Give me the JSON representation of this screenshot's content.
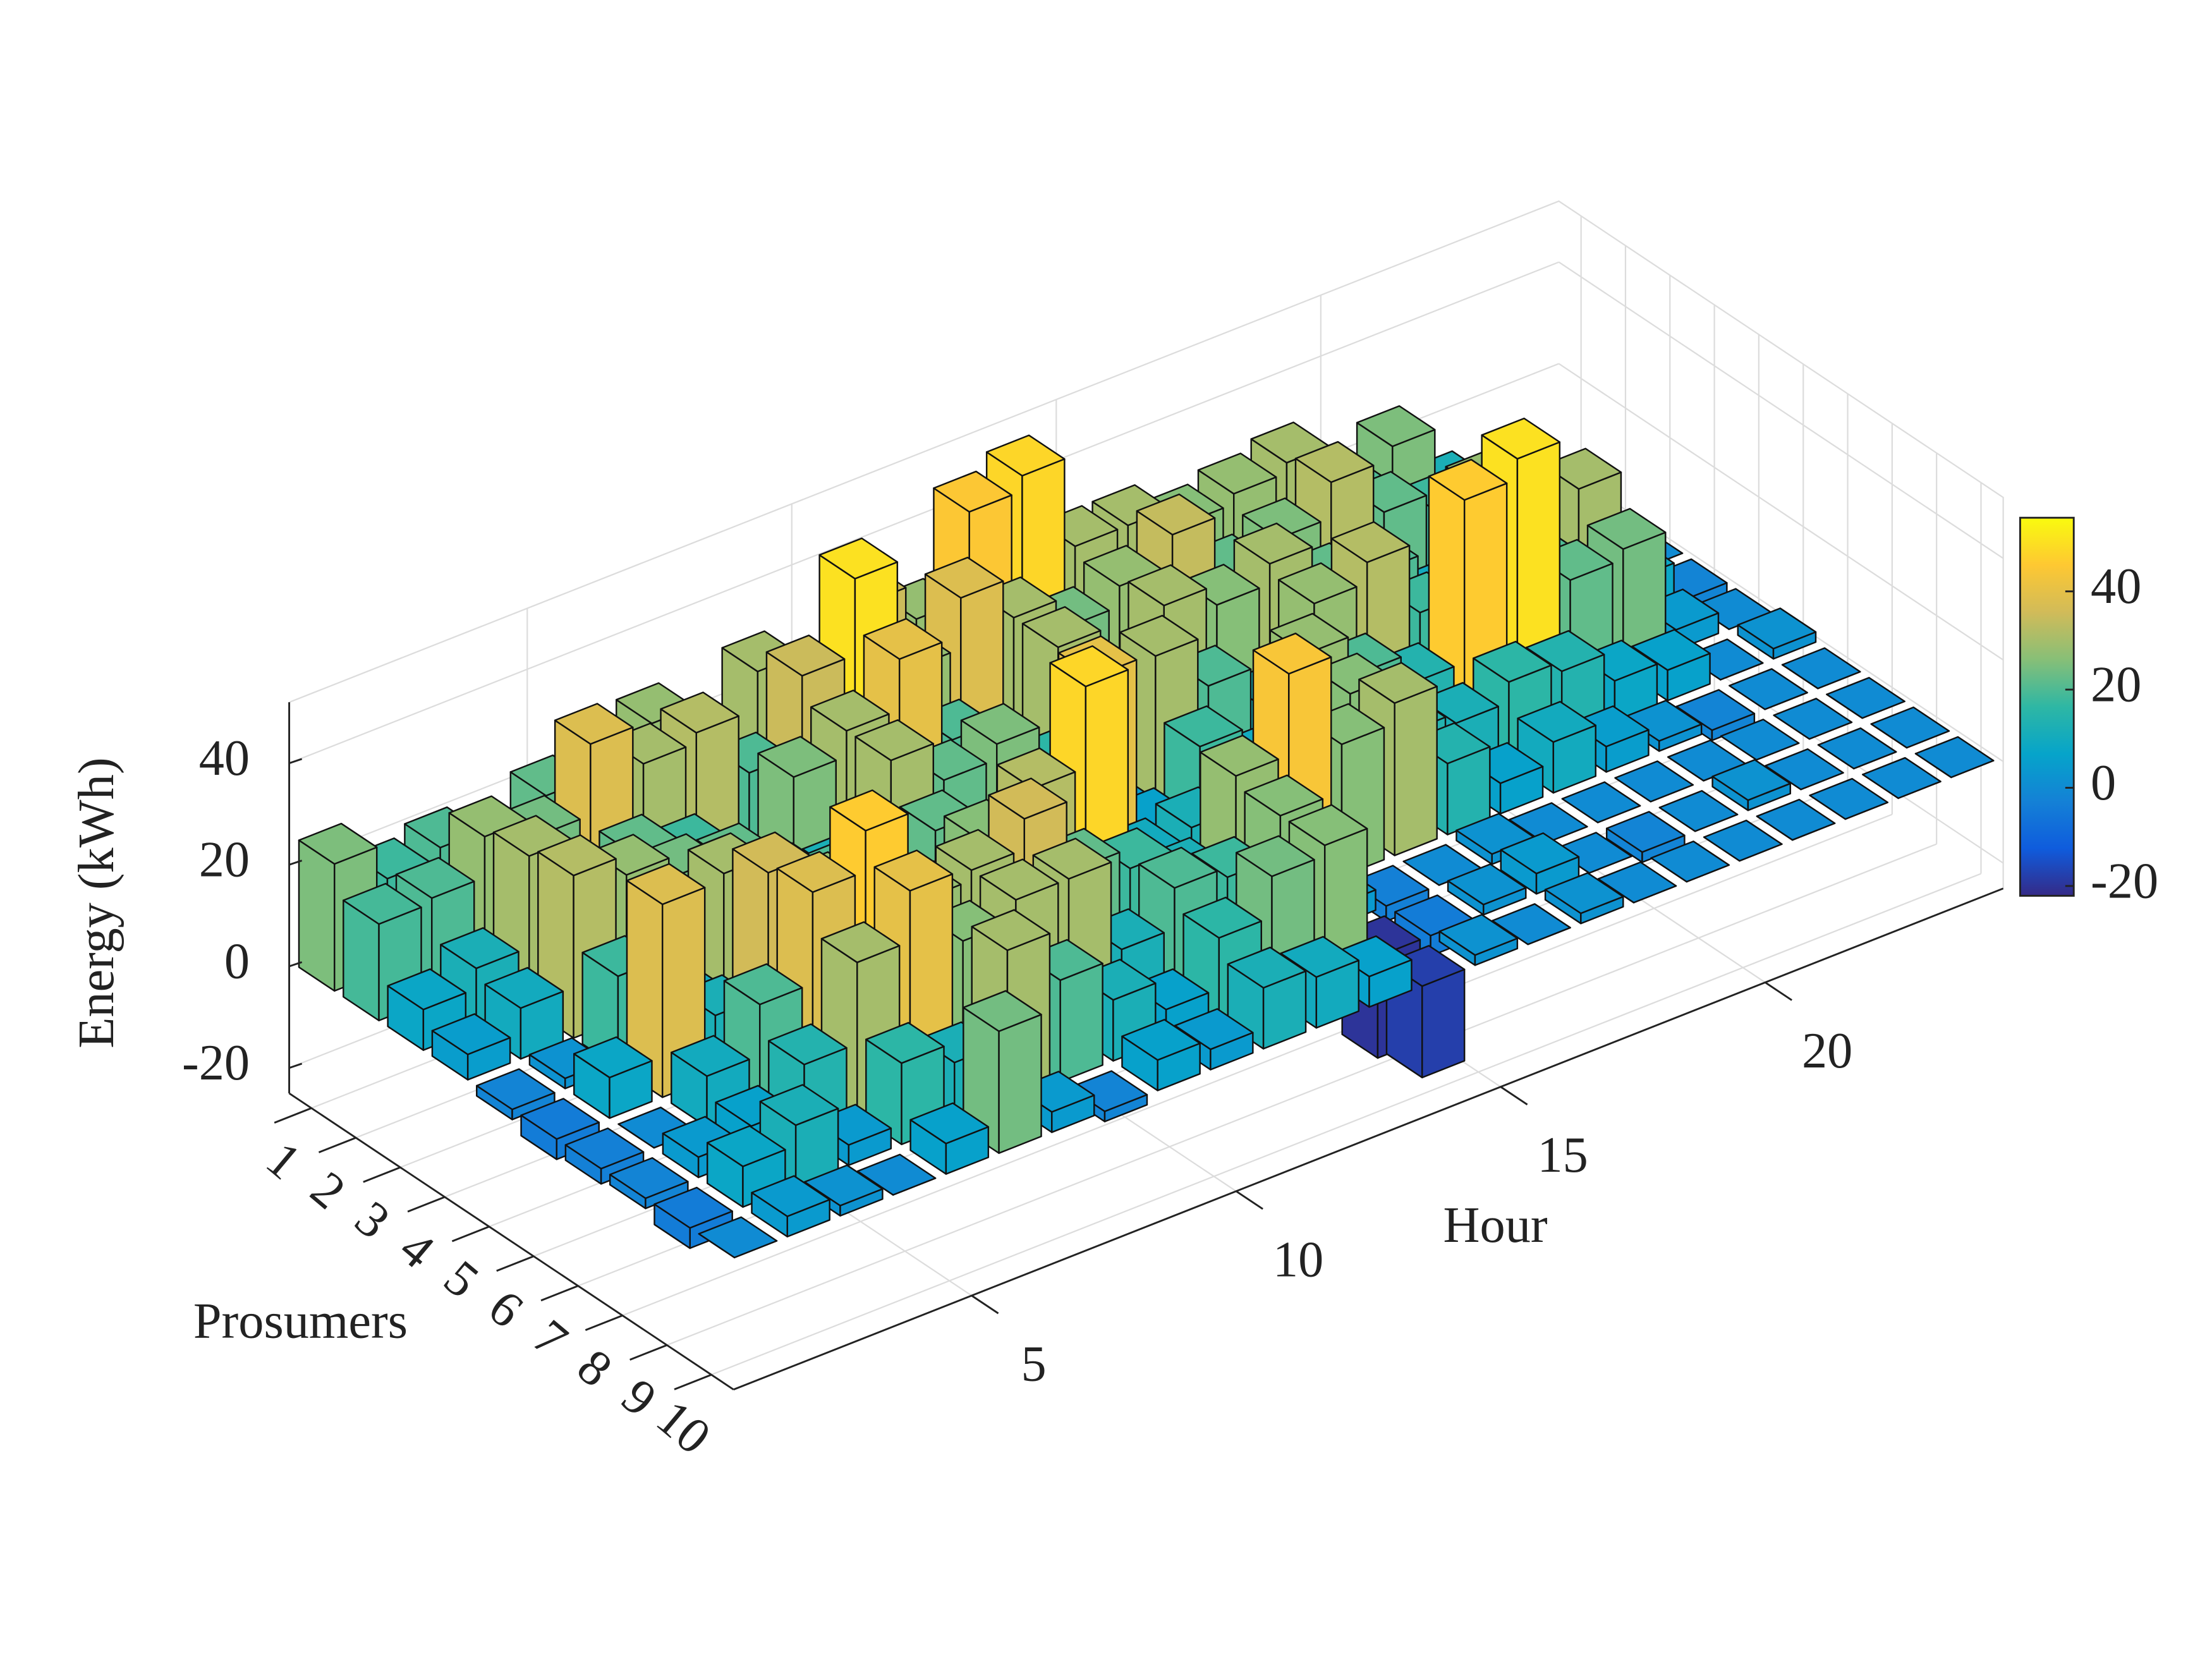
{
  "chart_data": {
    "type": "bar3",
    "xlabel": "Hour",
    "ylabel": "Prosumers",
    "zlabel": "Energy (kWh)",
    "x": [
      1,
      2,
      3,
      4,
      5,
      6,
      7,
      8,
      9,
      10,
      11,
      12,
      13,
      14,
      15,
      16,
      17,
      18,
      19,
      20,
      21,
      22,
      23,
      24
    ],
    "y": [
      1,
      2,
      3,
      4,
      5,
      6,
      7,
      8,
      9,
      10
    ],
    "xlim": [
      0.5,
      24.5
    ],
    "xticks": [
      5,
      10,
      15,
      20
    ],
    "ylim": [
      0.5,
      10.5
    ],
    "yticks": [
      1,
      2,
      3,
      4,
      5,
      6,
      7,
      8,
      9,
      10
    ],
    "zlim": [
      -25,
      52
    ],
    "zticks": [
      -20,
      0,
      20,
      40
    ],
    "grid": true,
    "values": [
      [
        25,
        18,
        20,
        14,
        22,
        -3,
        28,
        5,
        30,
        12,
        35,
        28,
        45,
        48,
        30,
        30,
        26,
        28,
        30,
        20,
        25,
        12,
        0,
        -2
      ],
      [
        19,
        20,
        28,
        24,
        38,
        30,
        32,
        20,
        35,
        50,
        28,
        38,
        30,
        24,
        28,
        34,
        22,
        25,
        32,
        22,
        18,
        10,
        5,
        -2
      ],
      [
        8,
        12,
        30,
        15,
        22,
        18,
        8,
        25,
        30,
        40,
        20,
        10,
        30,
        14,
        30,
        26,
        30,
        22,
        20,
        10,
        28,
        18,
        2,
        0
      ],
      [
        5,
        10,
        32,
        28,
        24,
        22,
        14,
        12,
        30,
        22,
        25,
        16,
        4,
        30,
        20,
        12,
        28,
        32,
        18,
        25,
        20,
        30,
        8,
        -2
      ],
      [
        -2,
        2,
        18,
        10,
        30,
        14,
        20,
        8,
        22,
        14,
        18,
        40,
        6,
        18,
        10,
        28,
        20,
        14,
        46,
        50,
        22,
        24,
        4,
        0
      ],
      [
        -4,
        8,
        38,
        12,
        36,
        28,
        12,
        18,
        26,
        32,
        48,
        10,
        12,
        -18,
        6,
        26,
        14,
        12,
        16,
        14,
        8,
        6,
        0,
        2
      ],
      [
        -3,
        0,
        10,
        20,
        38,
        46,
        28,
        30,
        36,
        22,
        18,
        12,
        28,
        44,
        26,
        30,
        14,
        6,
        10,
        5,
        2,
        -2,
        0,
        0
      ],
      [
        -2,
        4,
        6,
        14,
        30,
        40,
        26,
        30,
        30,
        12,
        20,
        18,
        26,
        4,
        -3,
        0,
        2,
        0,
        0,
        0,
        0,
        0,
        0,
        0
      ],
      [
        -4,
        8,
        12,
        4,
        16,
        12,
        30,
        20,
        12,
        6,
        16,
        24,
        26,
        -20,
        -4,
        2,
        4,
        0,
        -2,
        0,
        2,
        0,
        0,
        0
      ],
      [
        0,
        4,
        2,
        0,
        6,
        24,
        4,
        -2,
        6,
        4,
        12,
        10,
        6,
        -18,
        2,
        0,
        2,
        0,
        0,
        0,
        0,
        0,
        0,
        0
      ]
    ],
    "colorbar": {
      "clim": [
        -22,
        55
      ],
      "ticks": [
        -20,
        0,
        20,
        40
      ]
    },
    "colormap": [
      "#352a87",
      "#0f5cdd",
      "#1481d6",
      "#06a4ca",
      "#2eb7a4",
      "#87bf77",
      "#d1bb59",
      "#fec832",
      "#f9fb0e"
    ]
  }
}
